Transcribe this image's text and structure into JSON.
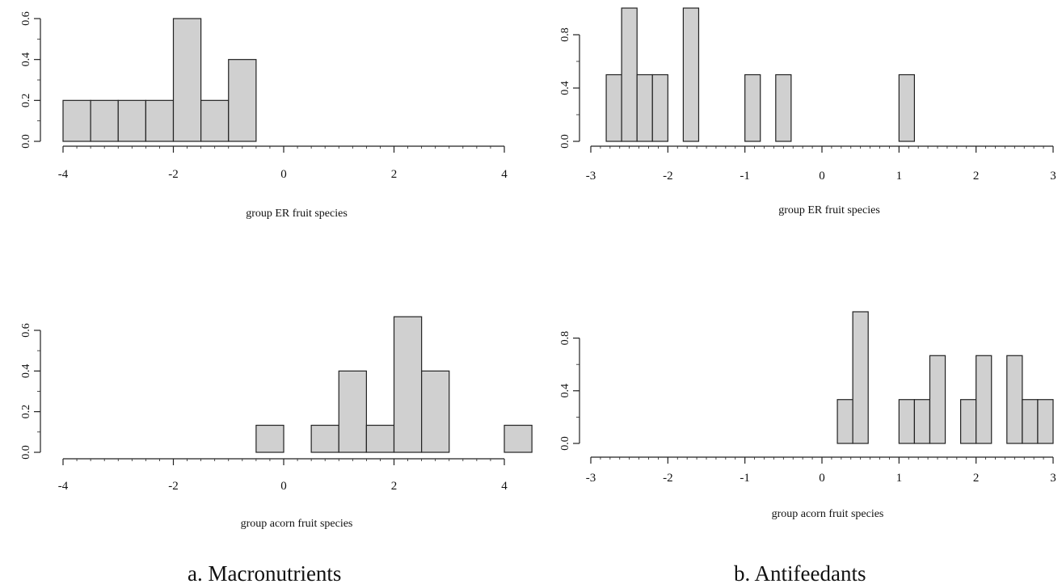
{
  "panel_labels": {
    "a": "a. Macronutrients",
    "b": "b. Antifeedants"
  },
  "colors": {
    "bar_fill": "#d0d0d0",
    "bar_stroke": "#222222",
    "axis": "#222222"
  },
  "chart_data": [
    {
      "type": "bar",
      "panel": "a",
      "title": "",
      "xlabel": "group ER fruit species",
      "ylabel": "",
      "xlim": [
        -4,
        4.5
      ],
      "ylim": [
        0,
        0.6
      ],
      "xticks": [
        -4,
        -2,
        0,
        2,
        4
      ],
      "xtick_labels": [
        "-4",
        "-2",
        "0",
        "2",
        "4"
      ],
      "yticks": [
        0.0,
        0.2,
        0.4,
        0.6
      ],
      "ytick_labels": [
        "0.0",
        "0.2",
        "0.4",
        "0.6"
      ],
      "bin_width": 0.5,
      "bin_starts": [
        -4,
        -3.5,
        -3,
        -2.5,
        -2,
        -1.5,
        -1,
        -0.5,
        0,
        0.5,
        1,
        1.5,
        2,
        2.5,
        3,
        3.5,
        4
      ],
      "values": [
        0.2,
        0.2,
        0.2,
        0.2,
        0.6,
        0.2,
        0.4,
        0,
        0,
        0,
        0,
        0,
        0,
        0,
        0,
        0,
        0
      ]
    },
    {
      "type": "bar",
      "panel": "a",
      "title": "",
      "xlabel": "group acorn fruit species",
      "ylabel": "",
      "xlim": [
        -4,
        4.5
      ],
      "ylim": [
        0,
        0.6
      ],
      "xticks": [
        -4,
        -2,
        0,
        2,
        4
      ],
      "xtick_labels": [
        "-4",
        "-2",
        "0",
        "2",
        "4"
      ],
      "yticks": [
        0.0,
        0.2,
        0.4,
        0.6
      ],
      "ytick_labels": [
        "0.0",
        "0.2",
        "0.4",
        "0.6"
      ],
      "bin_width": 0.5,
      "bin_starts": [
        -4,
        -3.5,
        -3,
        -2.5,
        -2,
        -1.5,
        -1,
        -0.5,
        0,
        0.5,
        1,
        1.5,
        2,
        2.5,
        3,
        3.5,
        4
      ],
      "values": [
        0,
        0,
        0,
        0,
        0,
        0,
        0,
        0.133,
        0,
        0.133,
        0.4,
        0.133,
        0.667,
        0.4,
        0,
        0,
        0.133
      ]
    },
    {
      "type": "bar",
      "panel": "b",
      "title": "",
      "xlabel": "group ER fruit species",
      "ylabel": "",
      "xlim": [
        -3,
        3
      ],
      "ylim": [
        0,
        1.0
      ],
      "xticks": [
        -3,
        -2,
        -1,
        0,
        1,
        2,
        3
      ],
      "xtick_labels": [
        "-3",
        "-2",
        "-1",
        "0",
        "1",
        "2",
        "3"
      ],
      "yticks": [
        0.0,
        0.4,
        0.8
      ],
      "ytick_labels": [
        "0.0",
        "0.4",
        "0.8"
      ],
      "bin_width": 0.2,
      "bin_starts": [
        -2.8,
        -2.6,
        -2.4,
        -2.2,
        -2.0,
        -1.8,
        -1.6,
        -1.4,
        -1.2,
        -1.0,
        -0.8,
        -0.6,
        -0.4,
        -0.2,
        0.0,
        0.2,
        0.4,
        0.6,
        0.8,
        1.0,
        1.2,
        1.4,
        1.6,
        1.8,
        2.0,
        2.2,
        2.4,
        2.6,
        2.8
      ],
      "values": [
        0.5,
        1.0,
        0.5,
        0.5,
        0,
        1.0,
        0,
        0,
        0,
        0.5,
        0,
        0.5,
        0,
        0,
        0,
        0,
        0,
        0,
        0,
        0.5,
        0,
        0,
        0,
        0,
        0,
        0,
        0,
        0,
        0
      ]
    },
    {
      "type": "bar",
      "panel": "b",
      "title": "",
      "xlabel": "group acorn fruit species",
      "ylabel": "",
      "xlim": [
        -3,
        3
      ],
      "ylim": [
        0,
        1.0
      ],
      "xticks": [
        -3,
        -2,
        -1,
        0,
        1,
        2,
        3
      ],
      "xtick_labels": [
        "-3",
        "-2",
        "-1",
        "0",
        "1",
        "2",
        "3"
      ],
      "yticks": [
        0.0,
        0.4,
        0.8
      ],
      "ytick_labels": [
        "0.0",
        "0.4",
        "0.8"
      ],
      "bin_width": 0.2,
      "bin_starts": [
        -2.8,
        -2.6,
        -2.4,
        -2.2,
        -2.0,
        -1.8,
        -1.6,
        -1.4,
        -1.2,
        -1.0,
        -0.8,
        -0.6,
        -0.4,
        -0.2,
        0.0,
        0.2,
        0.4,
        0.6,
        0.8,
        1.0,
        1.2,
        1.4,
        1.6,
        1.8,
        2.0,
        2.2,
        2.4,
        2.6,
        2.8
      ],
      "values": [
        0,
        0,
        0,
        0,
        0,
        0,
        0,
        0,
        0,
        0,
        0,
        0,
        0,
        0,
        0,
        0.333,
        1.0,
        0,
        0,
        0.333,
        0.333,
        0.667,
        0,
        0.333,
        0.667,
        0,
        0.667,
        0.333,
        0.333
      ]
    }
  ]
}
